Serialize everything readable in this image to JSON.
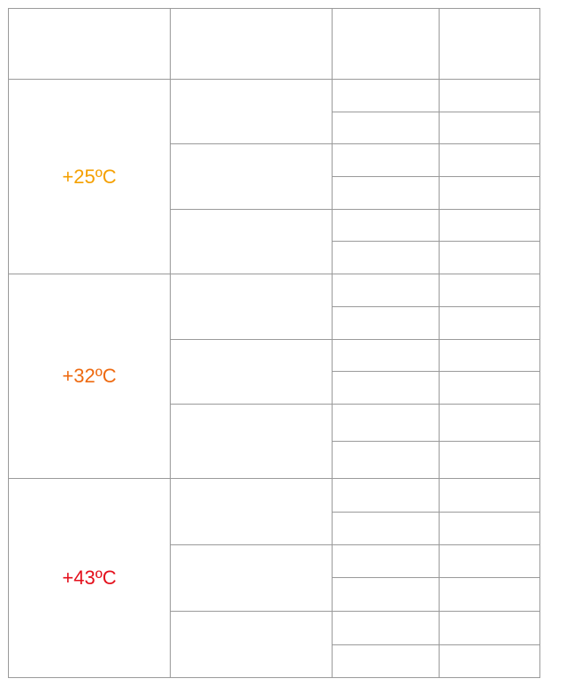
{
  "groups": [
    {
      "label": "+25ºC",
      "color": "#f5a000"
    },
    {
      "label": "+32ºC",
      "color": "#ee6a10"
    },
    {
      "label": "+43ºC",
      "color": "#e4101c"
    }
  ]
}
